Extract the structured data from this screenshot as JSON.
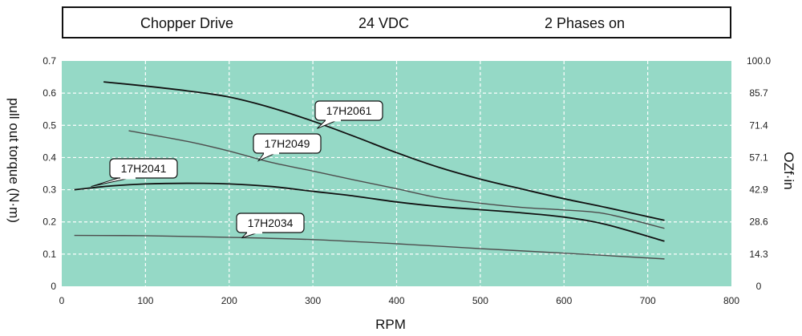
{
  "header": {
    "drive": "Chopper Drive",
    "voltage": "24 VDC",
    "phases": "2 Phases on"
  },
  "colors": {
    "plot_bg": "#95d9c6",
    "grid": "#ffffff",
    "line_dark": "#111111",
    "line_gray": "#4d4d4d"
  },
  "chart_data": {
    "type": "line",
    "title": "Chopper Drive 24 VDC 2 Phases on",
    "xlabel": "RPM",
    "ylabel": "pull out torque (N·m)",
    "y2label": "OZf·in",
    "xlim": [
      0,
      800
    ],
    "ylim": [
      0,
      0.7
    ],
    "xticks": [
      "0",
      "100",
      "200",
      "300",
      "400",
      "500",
      "600",
      "700",
      "800"
    ],
    "yticks": [
      "0",
      "0.1",
      "0.2",
      "0.3",
      "0.4",
      "0.5",
      "0.6",
      "0.7"
    ],
    "y2ticks": [
      "0",
      "14.3",
      "28.6",
      "42.9",
      "57.1",
      "71.4",
      "85.7",
      "100.0"
    ],
    "grid": true,
    "series": [
      {
        "name": "17H2061",
        "color": "#111111",
        "x": [
          50,
          100,
          150,
          200,
          250,
          300,
          350,
          400,
          450,
          500,
          550,
          600,
          650,
          720
        ],
        "y": [
          0.635,
          0.622,
          0.607,
          0.588,
          0.555,
          0.513,
          0.465,
          0.415,
          0.37,
          0.333,
          0.302,
          0.272,
          0.245,
          0.205
        ]
      },
      {
        "name": "17H2049",
        "color": "#4d4d4d",
        "x": [
          80,
          150,
          200,
          250,
          300,
          350,
          400,
          450,
          500,
          550,
          600,
          650,
          720
        ],
        "y": [
          0.483,
          0.45,
          0.42,
          0.385,
          0.358,
          0.33,
          0.303,
          0.275,
          0.258,
          0.245,
          0.237,
          0.225,
          0.18
        ]
      },
      {
        "name": "17H2041",
        "color": "#111111",
        "x": [
          15,
          60,
          100,
          150,
          200,
          250,
          300,
          350,
          400,
          450,
          500,
          550,
          600,
          650,
          720
        ],
        "y": [
          0.3,
          0.312,
          0.318,
          0.32,
          0.318,
          0.31,
          0.295,
          0.28,
          0.262,
          0.248,
          0.238,
          0.228,
          0.215,
          0.192,
          0.14
        ]
      },
      {
        "name": "17H2034",
        "color": "#4d4d4d",
        "x": [
          15,
          100,
          200,
          300,
          400,
          500,
          600,
          720
        ],
        "y": [
          0.158,
          0.157,
          0.152,
          0.145,
          0.132,
          0.117,
          0.103,
          0.085
        ]
      }
    ],
    "annotations": [
      {
        "label": "17H2061",
        "series": "17H2061",
        "points_to_x": 305,
        "points_to_y": 0.49
      },
      {
        "label": "17H2049",
        "series": "17H2049",
        "points_to_x": 235,
        "points_to_y": 0.39
      },
      {
        "label": "17H2041",
        "series": "17H2041",
        "points_to_x": 35,
        "points_to_y": 0.31
      },
      {
        "label": "17H2034",
        "series": "17H2034",
        "points_to_x": 215,
        "points_to_y": 0.15
      }
    ]
  }
}
